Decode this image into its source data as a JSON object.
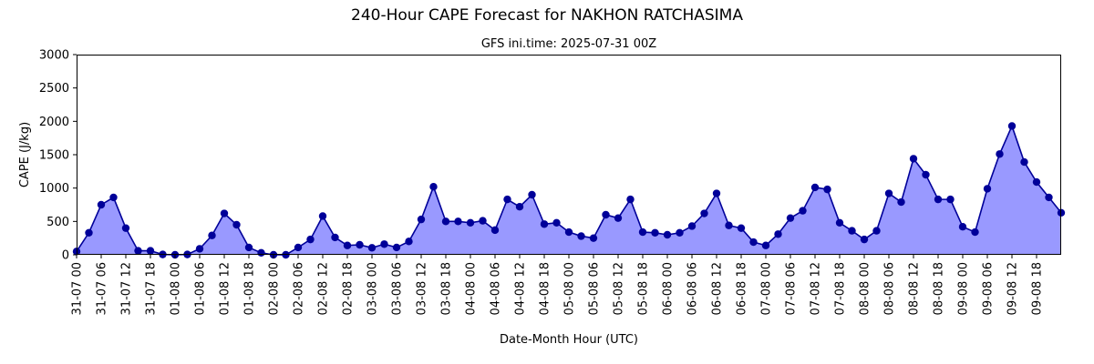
{
  "chart_data": {
    "type": "area",
    "title": "240-Hour CAPE Forecast for NAKHON RATCHASIMA",
    "subtitle": "GFS ini.time: 2025-07-31 00Z",
    "xlabel": "Date-Month Hour (UTC)",
    "ylabel": "CAPE (J/kg)",
    "ylim": [
      0,
      3000
    ],
    "yticks": [
      0,
      500,
      1000,
      1500,
      2000,
      2500,
      3000
    ],
    "x_step_hours": 3,
    "xtick_labels": [
      "31-07 00",
      "31-07 06",
      "31-07 12",
      "31-07 18",
      "01-08 00",
      "01-08 06",
      "01-08 12",
      "01-08 18",
      "02-08 00",
      "02-08 06",
      "02-08 12",
      "02-08 18",
      "03-08 00",
      "03-08 06",
      "03-08 12",
      "03-08 18",
      "04-08 00",
      "04-08 06",
      "04-08 12",
      "04-08 18",
      "05-08 00",
      "05-08 06",
      "05-08 12",
      "05-08 18",
      "06-08 00",
      "06-08 06",
      "06-08 12",
      "06-08 18",
      "07-08 00",
      "07-08 06",
      "07-08 12",
      "07-08 18",
      "08-08 00",
      "08-08 06",
      "08-08 12",
      "08-08 18",
      "09-08 00",
      "09-08 06",
      "09-08 12",
      "09-08 18"
    ],
    "values": [
      50,
      330,
      750,
      860,
      400,
      60,
      60,
      5,
      0,
      5,
      90,
      290,
      620,
      450,
      110,
      30,
      0,
      0,
      110,
      230,
      580,
      260,
      140,
      150,
      105,
      160,
      110,
      200,
      530,
      1020,
      500,
      500,
      480,
      510,
      370,
      830,
      720,
      900,
      460,
      480,
      340,
      280,
      250,
      600,
      550,
      830,
      340,
      330,
      300,
      330,
      430,
      620,
      920,
      440,
      400,
      190,
      140,
      310,
      550,
      660,
      1010,
      980,
      480,
      360,
      230,
      360,
      920,
      790,
      1440,
      1200,
      830,
      830,
      420,
      340,
      990,
      1510,
      1930,
      1390,
      1090,
      860,
      630
    ],
    "colors": {
      "line": "#000099",
      "fill": "#9999ff",
      "marker": "#000099"
    },
    "grid": false
  }
}
